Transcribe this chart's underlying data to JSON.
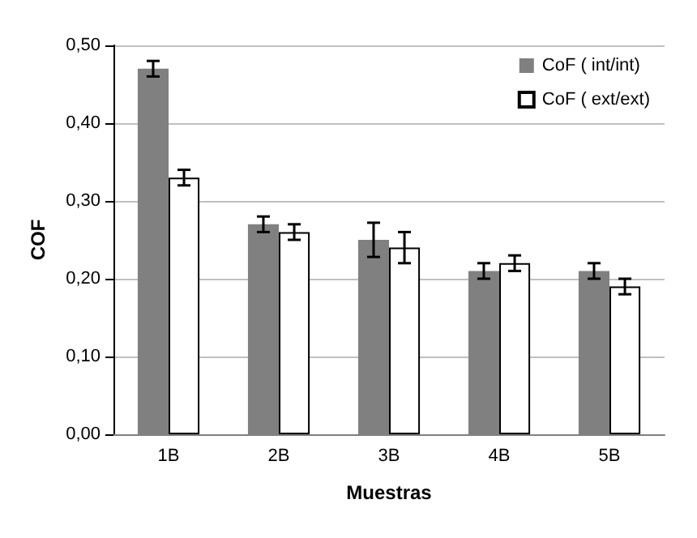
{
  "chart_data": {
    "type": "bar",
    "xlabel": "Muestras",
    "ylabel": "COF",
    "categories": [
      "1B",
      "2B",
      "3B",
      "4B",
      "5B"
    ],
    "series": [
      {
        "name": "CoF ( int/int)",
        "color": "#808080",
        "values": [
          0.47,
          0.27,
          0.25,
          0.21,
          0.21
        ],
        "errors": [
          0.01,
          0.01,
          0.022,
          0.01,
          0.01
        ]
      },
      {
        "name": "CoF ( ext/ext)",
        "color": "#ffffff",
        "values": [
          0.33,
          0.26,
          0.24,
          0.22,
          0.19
        ],
        "errors": [
          0.01,
          0.01,
          0.02,
          0.01,
          0.01
        ]
      }
    ],
    "ylim": [
      0,
      0.5
    ],
    "yticks": [
      {
        "value": 0,
        "label": "0,00"
      },
      {
        "value": 0.1,
        "label": "0,10"
      },
      {
        "value": 0.2,
        "label": "0,20"
      },
      {
        "value": 0.3,
        "label": "0,30"
      },
      {
        "value": 0.4,
        "label": "0,40"
      },
      {
        "value": 0.5,
        "label": "0,50"
      }
    ],
    "grid": "y",
    "legend": "top right"
  }
}
